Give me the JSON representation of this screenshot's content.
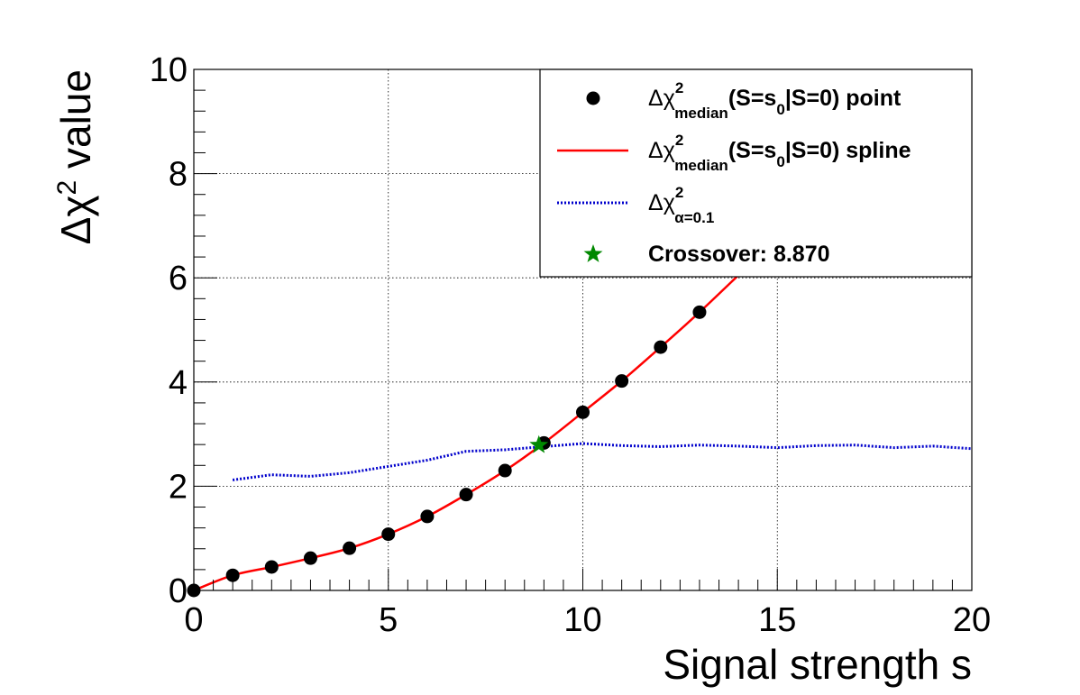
{
  "chart_data": {
    "type": "line",
    "xlabel": "Signal strength s",
    "ylabel": {
      "delta": "Δχ",
      "sup": "2",
      "rest": " value"
    },
    "xlim": [
      0,
      20
    ],
    "ylim": [
      0,
      10
    ],
    "x_major_ticks": [
      0,
      5,
      10,
      15,
      20
    ],
    "y_major_ticks": [
      0,
      2,
      4,
      6,
      8,
      10
    ],
    "x_tick_labels": [
      "0",
      "5",
      "10",
      "15",
      "20"
    ],
    "y_tick_labels": [
      "0",
      "2",
      "4",
      "6",
      "8",
      "10"
    ],
    "grid": true,
    "legend_placement": "top-right",
    "series": [
      {
        "name": "Δχ²median(S=s0|S=0) point",
        "style": "markers",
        "color": "#000000",
        "x": [
          0,
          1,
          2,
          3,
          4,
          5,
          6,
          7,
          8,
          9,
          10,
          11,
          12,
          13
        ],
        "y": [
          0.0,
          0.29,
          0.45,
          0.62,
          0.81,
          1.08,
          1.42,
          1.84,
          2.3,
          2.83,
          3.42,
          4.02,
          4.67,
          5.34
        ]
      },
      {
        "name": "Δχ²median(S=s0|S=0) spline",
        "style": "solid",
        "color": "#ff0000",
        "x": [
          0,
          1,
          2,
          3,
          4,
          5,
          6,
          7,
          8,
          9,
          10,
          11,
          12,
          13,
          14
        ],
        "y": [
          0.0,
          0.29,
          0.45,
          0.62,
          0.81,
          1.08,
          1.42,
          1.84,
          2.3,
          2.83,
          3.42,
          4.02,
          4.67,
          5.34,
          6.05
        ]
      },
      {
        "name": "Δχ²α=0.1",
        "style": "dotted",
        "color": "#0000cc",
        "x": [
          1,
          2,
          3,
          4,
          5,
          6,
          7,
          8,
          9,
          10,
          11,
          12,
          13,
          14,
          15,
          16,
          17,
          18,
          19,
          20
        ],
        "y": [
          2.12,
          2.22,
          2.19,
          2.26,
          2.38,
          2.5,
          2.67,
          2.7,
          2.76,
          2.82,
          2.78,
          2.76,
          2.79,
          2.77,
          2.74,
          2.78,
          2.79,
          2.74,
          2.77,
          2.72
        ]
      }
    ],
    "crossover": {
      "x": 8.87,
      "y": 2.79,
      "label": "Crossover: 8.870",
      "color": "#008800"
    },
    "legend": [
      {
        "delta": "Δχ",
        "sup": "2",
        "sub": "median",
        "rest": "(S=s",
        "sub2": "0",
        "rest2": "|S=0) point"
      },
      {
        "delta": "Δχ",
        "sup": "2",
        "sub": "median",
        "rest": "(S=s",
        "sub2": "0",
        "rest2": "|S=0) spline"
      },
      {
        "delta": "Δχ",
        "sup": "2",
        "sub": "α=0.1",
        "rest": "",
        "sub2": "",
        "rest2": ""
      },
      {
        "text": "Crossover: 8.870"
      }
    ]
  }
}
